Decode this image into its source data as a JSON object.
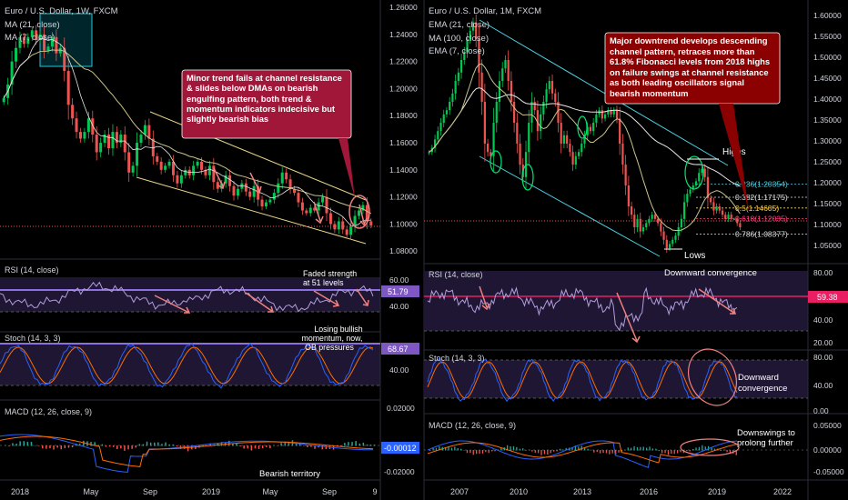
{
  "colors": {
    "bull": "#26a69a",
    "bullBright": "#00c853",
    "bear": "#ef5350",
    "ma": "#c9c38a",
    "ema21": "#d0d0d0",
    "channel": "#e8d68a",
    "channelRight": "#4dd0e1",
    "rsi": "#b39ddb",
    "stochK": "#2962ff",
    "stochD": "#ff6d00",
    "macd": "#2962ff",
    "signal": "#ff6d00",
    "annotation": "#a0173a",
    "annotationRight": "#8b0000"
  },
  "panels": {
    "left": {
      "title": "Euro / U.S. Dollar, 1W, FXCM",
      "legend": [
        "MA (21, close)",
        "MA (7, close)"
      ],
      "price_ticks": [
        "1.26000",
        "1.24000",
        "1.22000",
        "1.20000",
        "1.18000",
        "1.16000",
        "1.14000",
        "1.12000",
        "1.10000",
        "1.08000"
      ],
      "rsi_label": "RSI (14, close)",
      "rsi_ticks": [
        "60.00",
        "40.00"
      ],
      "rsi_value": "51.79",
      "stoch_label": "Stoch (14, 3, 3)",
      "stoch_ticks": [
        "40.00"
      ],
      "stoch_value": "68.67",
      "macd_label": "MACD (12, 26, close, 9)",
      "macd_ticks": [
        "0.02000",
        "-0.02000"
      ],
      "macd_value": "-0.00012",
      "x_ticks": [
        "2018",
        "May",
        "Sep",
        "2019",
        "May",
        "Sep",
        "9"
      ],
      "annotation": "Minor trend fails at channel resistance & slides below DMAs on bearish engulfing pattern, both trend & momentum indicators indecisive but slightly bearish bias",
      "rsi_note": "Faded strength at 51 levels",
      "stoch_note": "Losing bullish momentum, now, OB pressures",
      "macd_note": "Bearish territory"
    },
    "right": {
      "title": "Euro / U.S. Dollar, 1M, FXCM",
      "legend": [
        "EMA (21, close)",
        "MA (100, close)",
        "EMA (7, close)"
      ],
      "price_ticks": [
        "1.60000",
        "1.55000",
        "1.50000",
        "1.45000",
        "1.40000",
        "1.35000",
        "1.30000",
        "1.25000",
        "1.20000",
        "1.15000",
        "1.10000",
        "1.05000"
      ],
      "fib": [
        "0.236(1.20354)",
        "0.382(1.17175)",
        "0.5(1.14605)",
        "0.618(1.12035)",
        "0.786(1.08377)"
      ],
      "rsi_label": "RSI (14, close)",
      "rsi_ticks": [
        "80.00",
        "40.00",
        "20.00"
      ],
      "rsi_value": "59.38",
      "stoch_label": "Stoch (14, 3, 3)",
      "stoch_ticks": [
        "80.00",
        "40.00",
        "0.00"
      ],
      "macd_label": "MACD (12, 26, close, 9)",
      "macd_ticks": [
        "0.05000",
        "0.00000",
        "-0.05000"
      ],
      "x_ticks": [
        "2007",
        "2010",
        "2013",
        "2016",
        "2019",
        "2022"
      ],
      "annotation": "Major downtrend develops descending channel pattern, retraces more than 61.8% Fibonacci levels from 2018 highs on failure swings at channel resistance as both leading oscillators signal bearish momentum",
      "highs": "Highs",
      "lows": "Lows",
      "rsi_note": "Downward convergence",
      "stoch_note": "Downward convergence",
      "macd_note": "Downswings to prolong further"
    }
  },
  "chart_data": [
    {
      "type": "candlestick",
      "title": "Euro / U.S. Dollar, 1W, FXCM",
      "x_start": "2018",
      "ylim": [
        1.08,
        1.26
      ],
      "close": [
        1.195,
        1.205,
        1.222,
        1.232,
        1.24,
        1.235,
        1.24,
        1.245,
        1.238,
        1.242,
        1.23,
        1.233,
        1.24,
        1.228,
        1.232,
        1.215,
        1.19,
        1.18,
        1.17,
        1.165,
        1.17,
        1.18,
        1.168,
        1.155,
        1.162,
        1.168,
        1.158,
        1.17,
        1.162,
        1.168,
        1.155,
        1.14,
        1.145,
        1.162,
        1.168,
        1.175,
        1.165,
        1.152,
        1.148,
        1.142,
        1.145,
        1.148,
        1.138,
        1.132,
        1.138,
        1.142,
        1.138,
        1.145,
        1.148,
        1.142,
        1.138,
        1.145,
        1.133,
        1.128,
        1.132,
        1.138,
        1.13,
        1.123,
        1.128,
        1.132,
        1.126,
        1.122,
        1.13,
        1.12,
        1.115,
        1.118,
        1.12,
        1.125,
        1.132,
        1.14,
        1.135,
        1.128,
        1.125,
        1.118,
        1.112,
        1.11,
        1.114,
        1.112,
        1.118,
        1.122,
        1.11,
        1.102,
        1.098,
        1.104,
        1.098,
        1.094,
        1.1,
        1.108,
        1.112,
        1.116,
        1.104,
        1.101
      ],
      "series": [
        "MA (21, close)",
        "MA (7, close)"
      ]
    },
    {
      "type": "candlestick",
      "title": "Euro / U.S. Dollar, 1M, FXCM",
      "x_start": "2006",
      "ylim": [
        1.0,
        1.62
      ],
      "close": [
        1.28,
        1.29,
        1.31,
        1.33,
        1.35,
        1.37,
        1.38,
        1.4,
        1.42,
        1.45,
        1.47,
        1.5,
        1.52,
        1.55,
        1.57,
        1.59,
        1.55,
        1.47,
        1.4,
        1.3,
        1.28,
        1.27,
        1.35,
        1.4,
        1.45,
        1.48,
        1.5,
        1.45,
        1.4,
        1.35,
        1.3,
        1.25,
        1.22,
        1.28,
        1.35,
        1.4,
        1.38,
        1.33,
        1.37,
        1.4,
        1.43,
        1.45,
        1.42,
        1.4,
        1.35,
        1.3,
        1.32,
        1.3,
        1.28,
        1.25,
        1.27,
        1.28,
        1.3,
        1.32,
        1.34,
        1.33,
        1.35,
        1.37,
        1.38,
        1.36,
        1.37,
        1.38,
        1.37,
        1.38,
        1.36,
        1.3,
        1.25,
        1.2,
        1.15,
        1.13,
        1.1,
        1.12,
        1.09,
        1.1,
        1.11,
        1.12,
        1.13,
        1.12,
        1.11,
        1.09,
        1.07,
        1.05,
        1.06,
        1.07,
        1.08,
        1.1,
        1.12,
        1.16,
        1.18,
        1.19,
        1.2,
        1.21,
        1.23,
        1.24,
        1.22,
        1.17,
        1.16,
        1.14,
        1.15,
        1.14,
        1.13,
        1.12,
        1.13,
        1.12,
        1.12,
        1.11,
        1.1
      ],
      "series": [
        "EMA (21, close)",
        "MA (100, close)",
        "EMA (7, close)"
      ],
      "fibonacci": [
        {
          "level": 0.236,
          "price": 1.20354
        },
        {
          "level": 0.382,
          "price": 1.17175
        },
        {
          "level": 0.5,
          "price": 1.14605
        },
        {
          "level": 0.618,
          "price": 1.12035
        },
        {
          "level": 0.786,
          "price": 1.08377
        }
      ]
    }
  ]
}
